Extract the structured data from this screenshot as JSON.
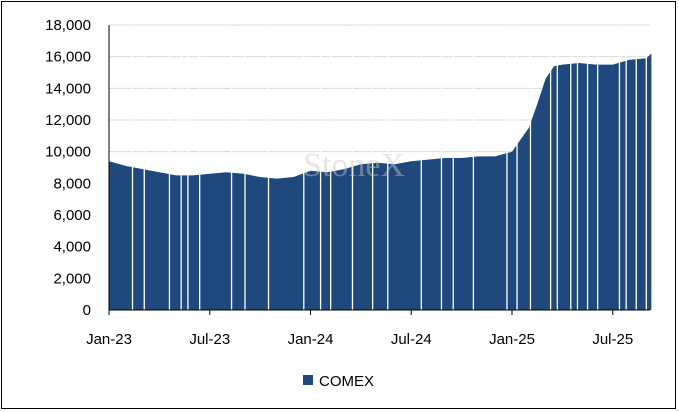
{
  "chart_data": {
    "type": "area",
    "title": "",
    "xlabel": "",
    "ylabel": "",
    "ylim": [
      0,
      18000
    ],
    "y_ticks": [
      "0",
      "2,000",
      "4,000",
      "6,000",
      "8,000",
      "10,000",
      "12,000",
      "14,000",
      "16,000",
      "18,000"
    ],
    "x_ticks": [
      "Jan-23",
      "Jul-23",
      "Jan-24",
      "Jul-24",
      "Jan-25",
      "Jul-25"
    ],
    "x_tick_months": [
      0,
      6,
      12,
      18,
      24,
      30
    ],
    "grid": "horizontal",
    "legend_position": "bottom",
    "watermark": "StoneX",
    "series": [
      {
        "name": "COMEX",
        "color": "#1f497d",
        "x_months": [
          0,
          1,
          2,
          3,
          4,
          5,
          6,
          7,
          8,
          9,
          10,
          11,
          12,
          13,
          14,
          15,
          16,
          17,
          18,
          19,
          20,
          21,
          22,
          23,
          24,
          25,
          25.5,
          26,
          26.5,
          27,
          28,
          29,
          30,
          31,
          32,
          32.3
        ],
        "values": [
          9400,
          9100,
          8900,
          8700,
          8500,
          8500,
          8600,
          8700,
          8600,
          8400,
          8300,
          8400,
          8800,
          8700,
          8900,
          9200,
          9300,
          9200,
          9400,
          9500,
          9600,
          9600,
          9700,
          9700,
          10000,
          11500,
          13000,
          14600,
          15400,
          15500,
          15600,
          15500,
          15500,
          15800,
          15900,
          16200
        ]
      }
    ]
  }
}
